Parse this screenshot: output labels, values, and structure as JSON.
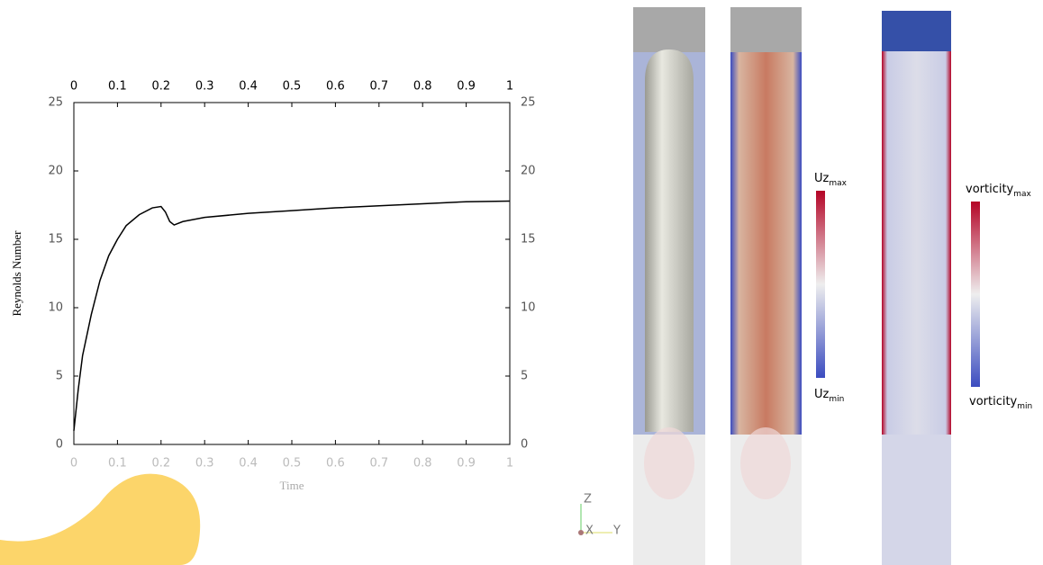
{
  "chart_data": {
    "type": "line",
    "x_label": "Time",
    "y_label": "Reynolds Number",
    "x": [
      0,
      0.01,
      0.02,
      0.04,
      0.06,
      0.08,
      0.1,
      0.12,
      0.15,
      0.18,
      0.2,
      0.21,
      0.22,
      0.23,
      0.25,
      0.3,
      0.4,
      0.5,
      0.6,
      0.7,
      0.8,
      0.9,
      1.0
    ],
    "series": [
      {
        "color": "#000000",
        "values": [
          1,
          4,
          6.5,
          9.5,
          12,
          13.8,
          15,
          16,
          16.8,
          17.3,
          17.4,
          17.0,
          16.3,
          16.05,
          16.3,
          16.6,
          16.9,
          17.1,
          17.3,
          17.45,
          17.6,
          17.75,
          17.8
        ]
      }
    ],
    "xlim": [
      0,
      1
    ],
    "xticks": [
      0,
      0.1,
      0.2,
      0.3,
      0.4,
      0.5,
      0.6,
      0.7,
      0.8,
      0.9,
      1
    ],
    "ylim": [
      0,
      25
    ],
    "yticks": [
      0,
      5,
      10,
      15,
      20,
      25
    ],
    "grid": false
  },
  "colorbars": [
    {
      "max": {
        "base": "Uz",
        "sub": "max"
      },
      "min": {
        "base": "Uz",
        "sub": "min"
      }
    },
    {
      "max": {
        "base": "vorticity",
        "sub": "max"
      },
      "min": {
        "base": "vorticity",
        "sub": "min"
      }
    }
  ],
  "axes_triad": {
    "z": "Z",
    "x": "X",
    "y": "Y"
  }
}
